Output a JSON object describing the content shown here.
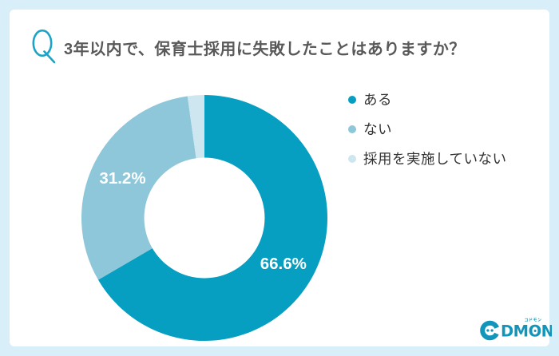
{
  "colors": {
    "frame_background": "#D8EEF8",
    "card_background": "#FFFFFF",
    "accent_teal": "#1CA3C7",
    "logo_teal": "#1295BA",
    "title_text": "#595959",
    "legend_text": "#333333",
    "slice_label_text": "#FFFFFF"
  },
  "header": {
    "q_mark": "Q",
    "title": "3年以内で、保育士採用に失敗したことはありますか？"
  },
  "chart_data": {
    "type": "pie",
    "donut": true,
    "title": "3年以内で、保育士採用に失敗したことはありますか？",
    "start_angle_deg": -90,
    "direction": "clockwise",
    "inner_radius_ratio": 0.49,
    "legend_position": "right",
    "unit": "%",
    "segments": [
      {
        "label": "ある",
        "value": 66.6,
        "display": "66.6%",
        "color": "#069EC1"
      },
      {
        "label": "ない",
        "value": 31.2,
        "display": "31.2%",
        "color": "#8DC7D9"
      },
      {
        "label": "採用を実施していない",
        "value": 2.2,
        "display": "",
        "color": "#CEE6EF"
      }
    ]
  },
  "logo": {
    "c": "C",
    "rest": "DMON",
    "katakana": "コドモン"
  }
}
